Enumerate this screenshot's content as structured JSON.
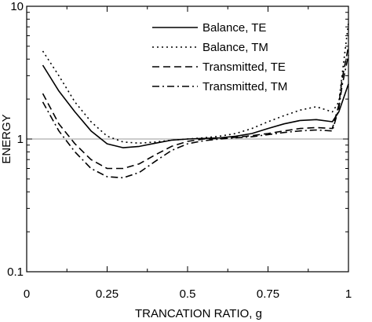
{
  "chart_data": {
    "type": "line",
    "xlabel": "TRANCATION RATIO, g",
    "ylabel": "ENERGY",
    "xlim": [
      0,
      1
    ],
    "ylim": [
      0.1,
      10
    ],
    "yscale": "log",
    "grid": false,
    "reference_line": 1,
    "legend_position": "top-right",
    "x_ticks": [
      {
        "value": 0,
        "label": "0"
      },
      {
        "value": 0.25,
        "label": "0.25"
      },
      {
        "value": 0.5,
        "label": "0.5"
      },
      {
        "value": 0.75,
        "label": "0.75"
      },
      {
        "value": 1,
        "label": "1"
      }
    ],
    "y_ticks": [
      {
        "value": 0.1,
        "label": "0.1"
      },
      {
        "value": 1,
        "label": "1"
      },
      {
        "value": 10,
        "label": "10"
      }
    ],
    "series": [
      {
        "name": "Balance, TE",
        "style": "solid",
        "x": [
          0.05,
          0.1,
          0.15,
          0.2,
          0.25,
          0.3,
          0.35,
          0.4,
          0.45,
          0.5,
          0.55,
          0.6,
          0.65,
          0.7,
          0.75,
          0.8,
          0.85,
          0.9,
          0.95,
          0.97,
          1.0
        ],
        "y": [
          3.6,
          2.3,
          1.6,
          1.15,
          0.92,
          0.86,
          0.88,
          0.93,
          0.98,
          1.0,
          1.01,
          1.02,
          1.05,
          1.1,
          1.2,
          1.3,
          1.38,
          1.4,
          1.35,
          1.6,
          2.6
        ]
      },
      {
        "name": "Balance, TM",
        "style": "dotted",
        "x": [
          0.05,
          0.1,
          0.15,
          0.2,
          0.25,
          0.3,
          0.35,
          0.4,
          0.45,
          0.5,
          0.55,
          0.6,
          0.65,
          0.7,
          0.75,
          0.8,
          0.85,
          0.9,
          0.95,
          0.97,
          0.98,
          1.0
        ],
        "y": [
          4.6,
          3.0,
          1.9,
          1.35,
          1.05,
          0.95,
          0.93,
          0.95,
          0.98,
          1.0,
          1.02,
          1.05,
          1.1,
          1.2,
          1.35,
          1.5,
          1.65,
          1.75,
          1.6,
          1.9,
          3.0,
          7.5
        ]
      },
      {
        "name": "Transmitted, TE",
        "style": "dashed",
        "x": [
          0.05,
          0.1,
          0.15,
          0.2,
          0.25,
          0.3,
          0.35,
          0.4,
          0.45,
          0.5,
          0.55,
          0.6,
          0.65,
          0.7,
          0.75,
          0.8,
          0.85,
          0.9,
          0.95,
          0.97,
          0.98,
          1.0
        ],
        "y": [
          2.2,
          1.3,
          0.92,
          0.7,
          0.6,
          0.6,
          0.65,
          0.76,
          0.88,
          0.96,
          1.0,
          1.01,
          1.03,
          1.06,
          1.1,
          1.15,
          1.2,
          1.22,
          1.2,
          1.8,
          2.8,
          5.0
        ]
      },
      {
        "name": "Transmitted, TM",
        "style": "dashdot",
        "x": [
          0.05,
          0.1,
          0.15,
          0.2,
          0.25,
          0.3,
          0.35,
          0.4,
          0.45,
          0.5,
          0.55,
          0.6,
          0.65,
          0.7,
          0.75,
          0.8,
          0.85,
          0.9,
          0.95,
          0.97,
          0.98,
          1.0
        ],
        "y": [
          1.9,
          1.15,
          0.8,
          0.6,
          0.52,
          0.51,
          0.56,
          0.68,
          0.82,
          0.92,
          0.97,
          1.0,
          1.02,
          1.04,
          1.08,
          1.12,
          1.15,
          1.17,
          1.15,
          1.7,
          2.5,
          4.3
        ]
      }
    ]
  }
}
